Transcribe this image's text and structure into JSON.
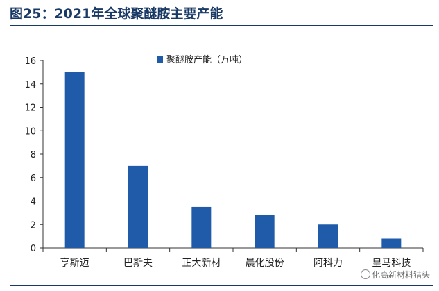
{
  "figure": {
    "title": "图25：2021年全球聚醚胺主要产能"
  },
  "watermark": {
    "text": "化高新材料猎头"
  },
  "chart_data": {
    "type": "bar",
    "categories": [
      "亨斯迈",
      "巴斯夫",
      "正大新材",
      "晨化股份",
      "阿科力",
      "皇马科技"
    ],
    "series": [
      {
        "name": "聚醚胺产能（万吨）",
        "values": [
          15,
          7,
          3.5,
          2.8,
          2,
          0.8
        ],
        "color": "#1f5ba8"
      }
    ],
    "ylim": [
      0,
      16
    ],
    "yticks": [
      0,
      2,
      4,
      6,
      8,
      10,
      12,
      14,
      16
    ],
    "grid": false,
    "legend": "top-center"
  }
}
